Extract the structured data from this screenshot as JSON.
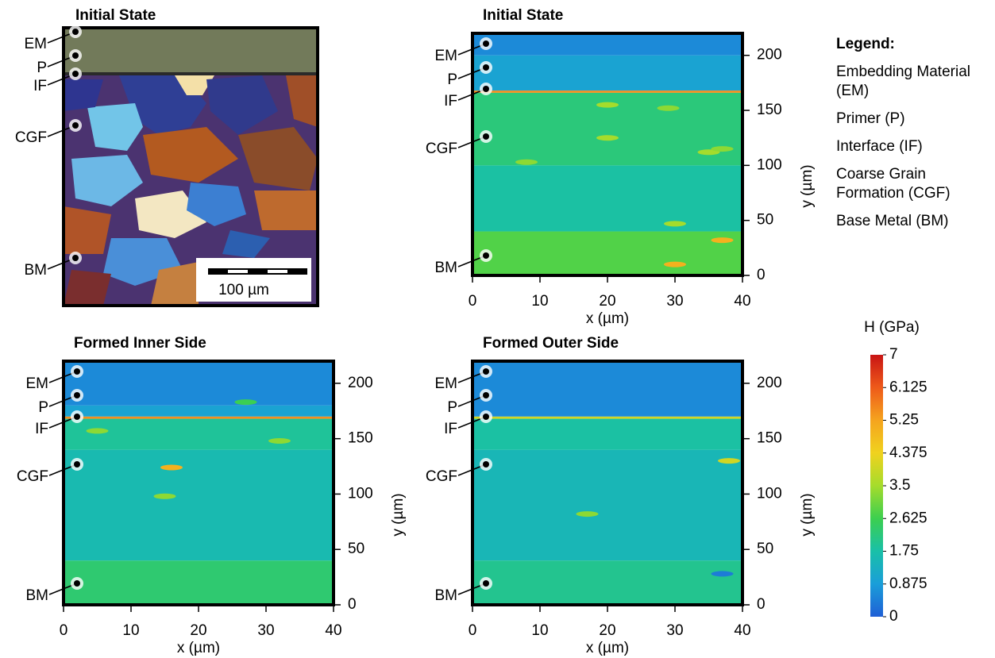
{
  "micrograph": {
    "title": "Initial State",
    "annotations": [
      "EM",
      "P",
      "IF",
      "CGF",
      "BM"
    ],
    "scale_bar": "100 µm"
  },
  "chart_data": [
    {
      "type": "heatmap",
      "title": "Initial State",
      "xlabel": "x (µm)",
      "ylabel": "y (µm)",
      "xlim": [
        0,
        40
      ],
      "ylim": [
        0,
        220
      ],
      "xticks": [
        0,
        10,
        20,
        30,
        40
      ],
      "yticks": [
        0,
        50,
        100,
        150,
        200
      ],
      "annotations": [
        "EM",
        "P",
        "IF",
        "CGF",
        "BM"
      ],
      "profile": {
        "edges": [
          0,
          40,
          100,
          166,
          168,
          200,
          220
        ],
        "values": [
          2.8,
          1.8,
          2.2,
          5.5,
          1.0,
          0.6
        ]
      },
      "hotspots": {
        "x": [
          20,
          29,
          20,
          8,
          35,
          37,
          30,
          37,
          30
        ],
        "y": [
          155,
          152,
          125,
          103,
          112,
          115,
          47,
          32,
          10
        ],
        "values": [
          3.5,
          3.3,
          3.5,
          3.3,
          3.5,
          3.3,
          3.5,
          5,
          5
        ]
      }
    },
    {
      "type": "heatmap",
      "title": "Formed Inner Side",
      "xlabel": "x (µm)",
      "ylabel": "y (µm)",
      "xlim": [
        0,
        40
      ],
      "ylim": [
        0,
        220
      ],
      "xticks": [
        0,
        10,
        20,
        30,
        40
      ],
      "yticks": [
        0,
        50,
        100,
        150,
        200
      ],
      "annotations": [
        "EM",
        "P",
        "IF",
        "CGF",
        "BM"
      ],
      "profile": {
        "edges": [
          0,
          40,
          140,
          168,
          170,
          180,
          220
        ],
        "values": [
          2.3,
          1.6,
          1.9,
          5.5,
          1.0,
          0.6
        ]
      },
      "hotspots": {
        "x": [
          5,
          32,
          16,
          15,
          27
        ],
        "y": [
          157,
          148,
          124,
          98,
          183
        ],
        "values": [
          3.3,
          3.3,
          5,
          3.3,
          2.6
        ]
      }
    },
    {
      "type": "heatmap",
      "title": "Formed Outer Side",
      "xlabel": "x (µm)",
      "ylabel": "y (µm)",
      "xlim": [
        0,
        40
      ],
      "ylim": [
        0,
        220
      ],
      "xticks": [
        0,
        10,
        20,
        30,
        40
      ],
      "yticks": [
        0,
        50,
        100,
        150,
        200
      ],
      "annotations": [
        "EM",
        "P",
        "IF",
        "CGF",
        "BM"
      ],
      "profile": {
        "edges": [
          0,
          40,
          140,
          168,
          170,
          220
        ],
        "values": [
          2.0,
          1.5,
          1.8,
          4.0,
          0.6
        ]
      },
      "hotspots": {
        "x": [
          38,
          17,
          37
        ],
        "y": [
          130,
          82,
          28
        ],
        "values": [
          4,
          3.3,
          0.4
        ]
      }
    }
  ],
  "colorbar": {
    "title": "H (GPa)",
    "lim": [
      0,
      7
    ],
    "ticks": [
      0,
      0.875,
      1.75,
      2.625,
      3.5,
      4.375,
      5.25,
      6.125,
      7
    ],
    "colormap": [
      "#1f5fd6",
      "#1a9ed9",
      "#19c0a8",
      "#3ccf4f",
      "#a5dc2c",
      "#f0d21e",
      "#f5a41e",
      "#ee5a1a",
      "#c81414"
    ]
  },
  "legend": {
    "title": "Legend:",
    "items": [
      "Embedding Material (EM)",
      "Primer (P)",
      "Interface (IF)",
      "Coarse Grain Formation (CGF)",
      "Base Metal (BM)"
    ]
  }
}
